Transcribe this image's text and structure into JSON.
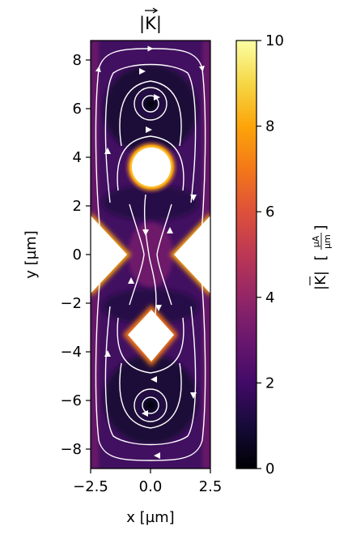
{
  "chart_data": {
    "type": "heatmap",
    "title": "|K|",
    "xlabel": "x [µm]",
    "ylabel": "y [µm]",
    "xlim": [
      -2.5,
      2.5
    ],
    "ylim": [
      -8.8,
      8.8
    ],
    "x_ticks": [
      "−2.5",
      "0.0",
      "2.5"
    ],
    "x_tick_values": [
      -2.5,
      0.0,
      2.5
    ],
    "y_ticks": [
      "−8",
      "−6",
      "−4",
      "−2",
      "0",
      "2",
      "4",
      "6",
      "8"
    ],
    "y_tick_values": [
      -8,
      -6,
      -4,
      -2,
      0,
      2,
      4,
      6,
      8
    ],
    "colorbar": {
      "label": "|K| [µA/µm]",
      "label_symbol": "|K|",
      "label_unit_num": "µA",
      "label_unit_den": "µm",
      "range": [
        0,
        10
      ],
      "ticks": [
        "0",
        "2",
        "4",
        "6",
        "8",
        "10"
      ],
      "tick_values": [
        0,
        2,
        4,
        6,
        8,
        10
      ],
      "colormap": "inferno"
    },
    "features": [
      {
        "name": "circular-hole",
        "shape": "circle",
        "center": [
          0.0,
          3.6
        ],
        "radius": 0.75
      },
      {
        "name": "square-hole",
        "shape": "diamond",
        "center": [
          0.0,
          -3.6
        ],
        "half_diagonal": 0.9
      },
      {
        "name": "left-constriction",
        "shape": "notch",
        "tip": [
          -0.8,
          0.0
        ]
      },
      {
        "name": "right-constriction",
        "shape": "notch",
        "tip": [
          0.8,
          0.0
        ]
      },
      {
        "name": "upper-vortex",
        "center": [
          0.0,
          6.2
        ]
      },
      {
        "name": "lower-vortex",
        "center": [
          0.0,
          -6.2
        ]
      }
    ]
  }
}
